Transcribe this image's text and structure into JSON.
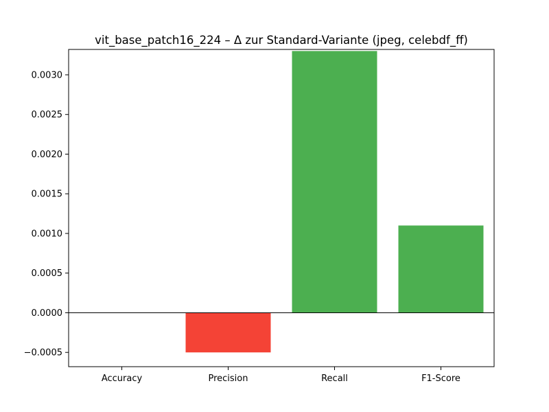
{
  "chart_data": {
    "type": "bar",
    "title": "vit_base_patch16_224 – Δ zur Standard-Variante (jpeg, celebdf_ff)",
    "xlabel": "",
    "ylabel": "",
    "categories": [
      "Accuracy",
      "Precision",
      "Recall",
      "F1-Score"
    ],
    "values": [
      0.0,
      -0.0005,
      0.0033,
      0.0011
    ],
    "ylim": [
      -0.00068,
      0.00332
    ],
    "yticks": [
      -0.0005,
      0.0,
      0.0005,
      0.001,
      0.0015,
      0.002,
      0.0025,
      0.003
    ],
    "ytick_labels": [
      "−0.0005",
      "0.0000",
      "0.0005",
      "0.0010",
      "0.0015",
      "0.0020",
      "0.0025",
      "0.0030"
    ],
    "grid": false,
    "legend": "none",
    "colors": {
      "positive": "#4caf50",
      "negative": "#f44336",
      "zero_line": "#000000"
    }
  }
}
